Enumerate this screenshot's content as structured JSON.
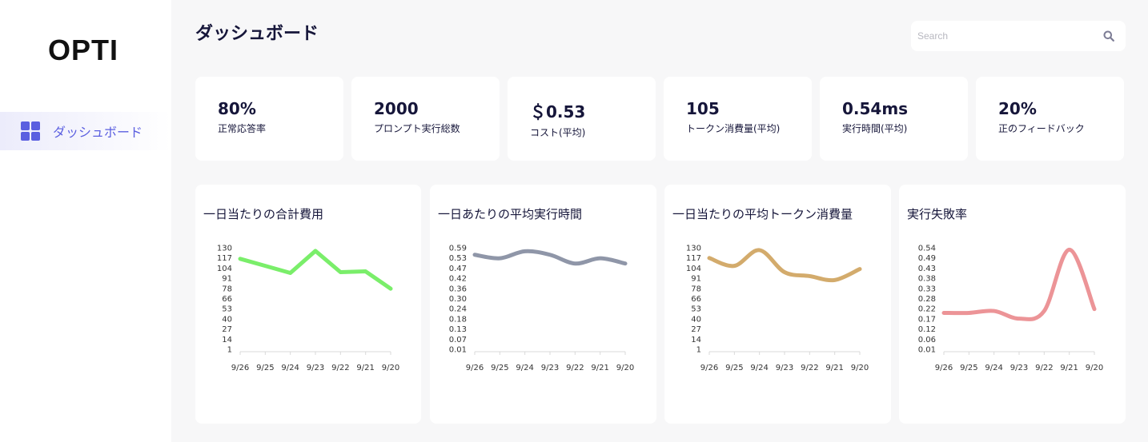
{
  "sidebar": {
    "logo": "OPTI",
    "nav_items": [
      {
        "label": "ダッシュボード",
        "icon": "grid-icon",
        "active": true
      }
    ]
  },
  "header": {
    "title": "ダッシュボード",
    "search": {
      "placeholder": "Search",
      "value": ""
    }
  },
  "stats": [
    {
      "value": "80%",
      "label": "正常応答率"
    },
    {
      "value": "2000",
      "label": "プロンプト実行総数"
    },
    {
      "value": "＄0.53",
      "label": "コスト(平均)"
    },
    {
      "value": "105",
      "label": "トークン消費量(平均)"
    },
    {
      "value": "0.54ms",
      "label": "実行時間(平均)"
    },
    {
      "value": "20%",
      "label": "正のフィードバック"
    }
  ],
  "colors": {
    "accent": "#5b5fe0",
    "green": "#7aee6a",
    "gray": "#8f96a8",
    "tan": "#d3ab6c",
    "pink": "#ec9497"
  },
  "chart_data": [
    {
      "type": "line",
      "title": "一日当たりの合計費用",
      "smooth": false,
      "color": "#7aee6a",
      "categories": [
        "9/26",
        "9/25",
        "9/24",
        "9/23",
        "9/22",
        "9/21",
        "9/20"
      ],
      "yticks": [
        "130",
        "117",
        "104",
        "91",
        "78",
        "66",
        "53",
        "40",
        "27",
        "14",
        "1"
      ],
      "ylim": [
        1,
        130
      ],
      "series": [
        {
          "values": [
            116,
            107,
            98,
            126,
            99,
            100,
            78
          ]
        }
      ]
    },
    {
      "type": "line",
      "title": "一日あたりの平均実行時間",
      "smooth": true,
      "color": "#8f96a8",
      "categories": [
        "9/26",
        "9/25",
        "9/24",
        "9/23",
        "9/22",
        "9/21",
        "9/20"
      ],
      "yticks": [
        "0.59",
        "0.53",
        "0.47",
        "0.42",
        "0.36",
        "0.30",
        "0.24",
        "0.18",
        "0.13",
        "0.07",
        "0.01"
      ],
      "ylim": [
        0.01,
        0.59
      ],
      "series": [
        {
          "values": [
            0.55,
            0.53,
            0.57,
            0.55,
            0.5,
            0.53,
            0.5
          ]
        }
      ]
    },
    {
      "type": "line",
      "title": "一日当たりの平均トークン消費量",
      "smooth": true,
      "color": "#d3ab6c",
      "categories": [
        "9/26",
        "9/25",
        "9/24",
        "9/23",
        "9/22",
        "9/21",
        "9/20"
      ],
      "yticks": [
        "130",
        "117",
        "104",
        "91",
        "78",
        "66",
        "53",
        "40",
        "27",
        "14",
        "1"
      ],
      "ylim": [
        1,
        130
      ],
      "series": [
        {
          "values": [
            117,
            107,
            127,
            99,
            94,
            89,
            103
          ]
        }
      ]
    },
    {
      "type": "line",
      "title": "実行失敗率",
      "smooth": true,
      "color": "#ec9497",
      "categories": [
        "9/26",
        "9/25",
        "9/24",
        "9/23",
        "9/22",
        "9/21",
        "9/20"
      ],
      "yticks": [
        "0.54",
        "0.49",
        "0.43",
        "0.38",
        "0.33",
        "0.28",
        "0.22",
        "0.17",
        "0.12",
        "0.06",
        "0.01"
      ],
      "ylim": [
        0.01,
        0.54
      ],
      "series": [
        {
          "values": [
            0.2,
            0.2,
            0.21,
            0.17,
            0.21,
            0.53,
            0.22
          ]
        }
      ]
    }
  ]
}
